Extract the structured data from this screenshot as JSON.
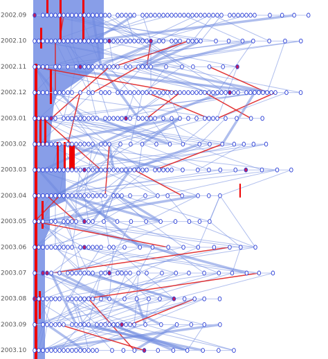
{
  "timeline": {
    "labels": [
      "2002.09",
      "2002.10",
      "2002.11",
      "2002.12",
      "2003.01",
      "2003.02",
      "2003.03",
      "2003.04",
      "2003.05",
      "2003.06",
      "2003.07",
      "2003.08",
      "2003.09",
      "2003.10"
    ]
  }
}
